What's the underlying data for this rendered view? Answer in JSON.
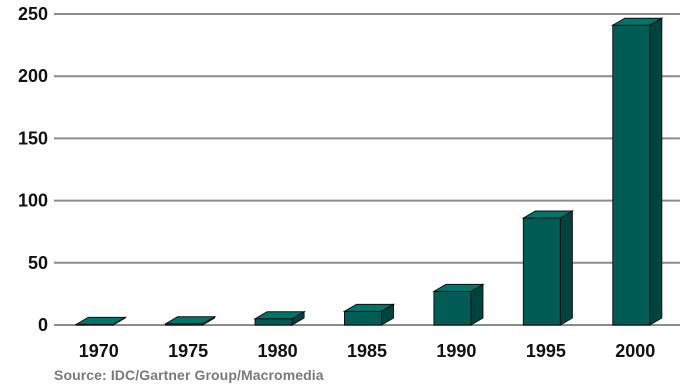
{
  "chart_data": {
    "type": "bar",
    "categories": [
      "1970",
      "1975",
      "1980",
      "1985",
      "1990",
      "1995",
      "2000"
    ],
    "values": [
      0.5,
      1,
      5,
      11,
      27,
      86,
      241
    ],
    "ylim": [
      0,
      250
    ],
    "yticks": [
      "0",
      "50",
      "100",
      "150",
      "200",
      "250"
    ],
    "grid": true,
    "bar_color": "#005c55",
    "bar_side_color": "#004440",
    "bar_top_color": "#00756c",
    "grid_color": "#8c8c8c"
  },
  "source": "Source:  IDC/Gartner Group/Macromedia"
}
